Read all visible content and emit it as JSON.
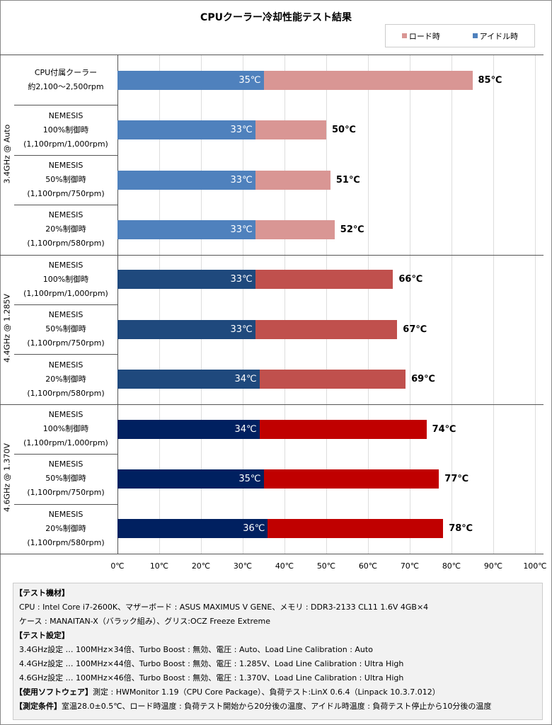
{
  "chart_data": {
    "type": "bar",
    "stacked": true,
    "title": "CPUクーラー冷却性能テスト結果",
    "legend": [
      {
        "name": "ロード時",
        "color": "#d99694"
      },
      {
        "name": "アイドル時",
        "color": "#4f81bd"
      }
    ],
    "legend_placement": "top-right",
    "xlim": [
      0,
      100
    ],
    "x_ticks": [
      "0℃",
      "10℃",
      "20℃",
      "30℃",
      "40℃",
      "50℃",
      "60℃",
      "70℃",
      "80℃",
      "90℃",
      "100℃"
    ],
    "groups": [
      {
        "label": "3.4GHz @ Auto",
        "idle_color": "#4f81bd",
        "load_color": "#d99694",
        "rows": [
          {
            "label": [
              "CPU付属クーラー",
              "約2,100～2,500rpm"
            ],
            "idle": 35,
            "load": 85,
            "idle_label": "35℃",
            "load_label": "85℃"
          },
          {
            "label": [
              "NEMESIS",
              "100%制御時",
              "(1,100rpm/1,000rpm)"
            ],
            "idle": 33,
            "load": 50,
            "idle_label": "33℃",
            "load_label": "50℃"
          },
          {
            "label": [
              "NEMESIS",
              "50%制御時",
              "(1,100rpm/750rpm)"
            ],
            "idle": 33,
            "load": 51,
            "idle_label": "33℃",
            "load_label": "51℃"
          },
          {
            "label": [
              "NEMESIS",
              "20%制御時",
              "(1,100rpm/580rpm)"
            ],
            "idle": 33,
            "load": 52,
            "idle_label": "33℃",
            "load_label": "52℃"
          }
        ]
      },
      {
        "label": "4.4GHz @ 1.285V",
        "idle_color": "#1f497d",
        "load_color": "#c0504d",
        "rows": [
          {
            "label": [
              "NEMESIS",
              "100%制御時",
              "(1,100rpm/1,000rpm)"
            ],
            "idle": 33,
            "load": 66,
            "idle_label": "33℃",
            "load_label": "66℃"
          },
          {
            "label": [
              "NEMESIS",
              "50%制御時",
              "(1,100rpm/750rpm)"
            ],
            "idle": 33,
            "load": 67,
            "idle_label": "33℃",
            "load_label": "67℃"
          },
          {
            "label": [
              "NEMESIS",
              "20%制御時",
              "(1,100rpm/580rpm)"
            ],
            "idle": 34,
            "load": 69,
            "idle_label": "34℃",
            "load_label": "69℃"
          }
        ]
      },
      {
        "label": "4.6GHz @ 1.370V",
        "idle_color": "#002060",
        "load_color": "#c00000",
        "rows": [
          {
            "label": [
              "NEMESIS",
              "100%制御時",
              "(1,100rpm/1,000rpm)"
            ],
            "idle": 34,
            "load": 74,
            "idle_label": "34℃",
            "load_label": "74℃"
          },
          {
            "label": [
              "NEMESIS",
              "50%制御時",
              "(1,100rpm/750rpm)"
            ],
            "idle": 35,
            "load": 77,
            "idle_label": "35℃",
            "load_label": "77℃"
          },
          {
            "label": [
              "NEMESIS",
              "20%制御時",
              "(1,100rpm/580rpm)"
            ],
            "idle": 36,
            "load": 78,
            "idle_label": "36℃",
            "load_label": "78℃"
          }
        ]
      }
    ]
  },
  "notes": [
    {
      "type": "h",
      "text": "【テスト機材】"
    },
    {
      "type": "p",
      "text": "CPU : Intel Core i7-2600K、マザーボード : ASUS MAXIMUS V GENE、メモリ : DDR3-2133 CL11 1.6V 4GB×4"
    },
    {
      "type": "p",
      "text": "ケース : MANAITAN-X（バラック組み）、グリス:OCZ Freeze Extreme"
    },
    {
      "type": "h",
      "text": "【テスト設定】"
    },
    {
      "type": "p",
      "text": "3.4GHz設定 … 100MHz×34倍、Turbo Boost : 無効、電圧 : Auto、Load Line Calibration : Auto"
    },
    {
      "type": "p",
      "text": "4.4GHz設定 … 100MHz×44倍、Turbo Boost : 無効、電圧 : 1.285V、Load Line Calibration : Ultra High"
    },
    {
      "type": "p",
      "text": "4.6GHz設定 … 100MHz×46倍、Turbo Boost : 無効、電圧 : 1.370V、Load Line Calibration : Ultra High"
    },
    {
      "type": "m",
      "head": "【使用ソフトウェア】",
      "text": "測定 : HWMonitor 1.19（CPU Core Package）、負荷テスト:LinX 0.6.4（Linpack 10.3.7.012）"
    },
    {
      "type": "m",
      "head": "【測定条件】",
      "text": "室温28.0±0.5℃、ロード時温度 : 負荷テスト開始から20分後の温度、アイドル時温度 : 負荷テスト停止から10分後の温度"
    }
  ]
}
